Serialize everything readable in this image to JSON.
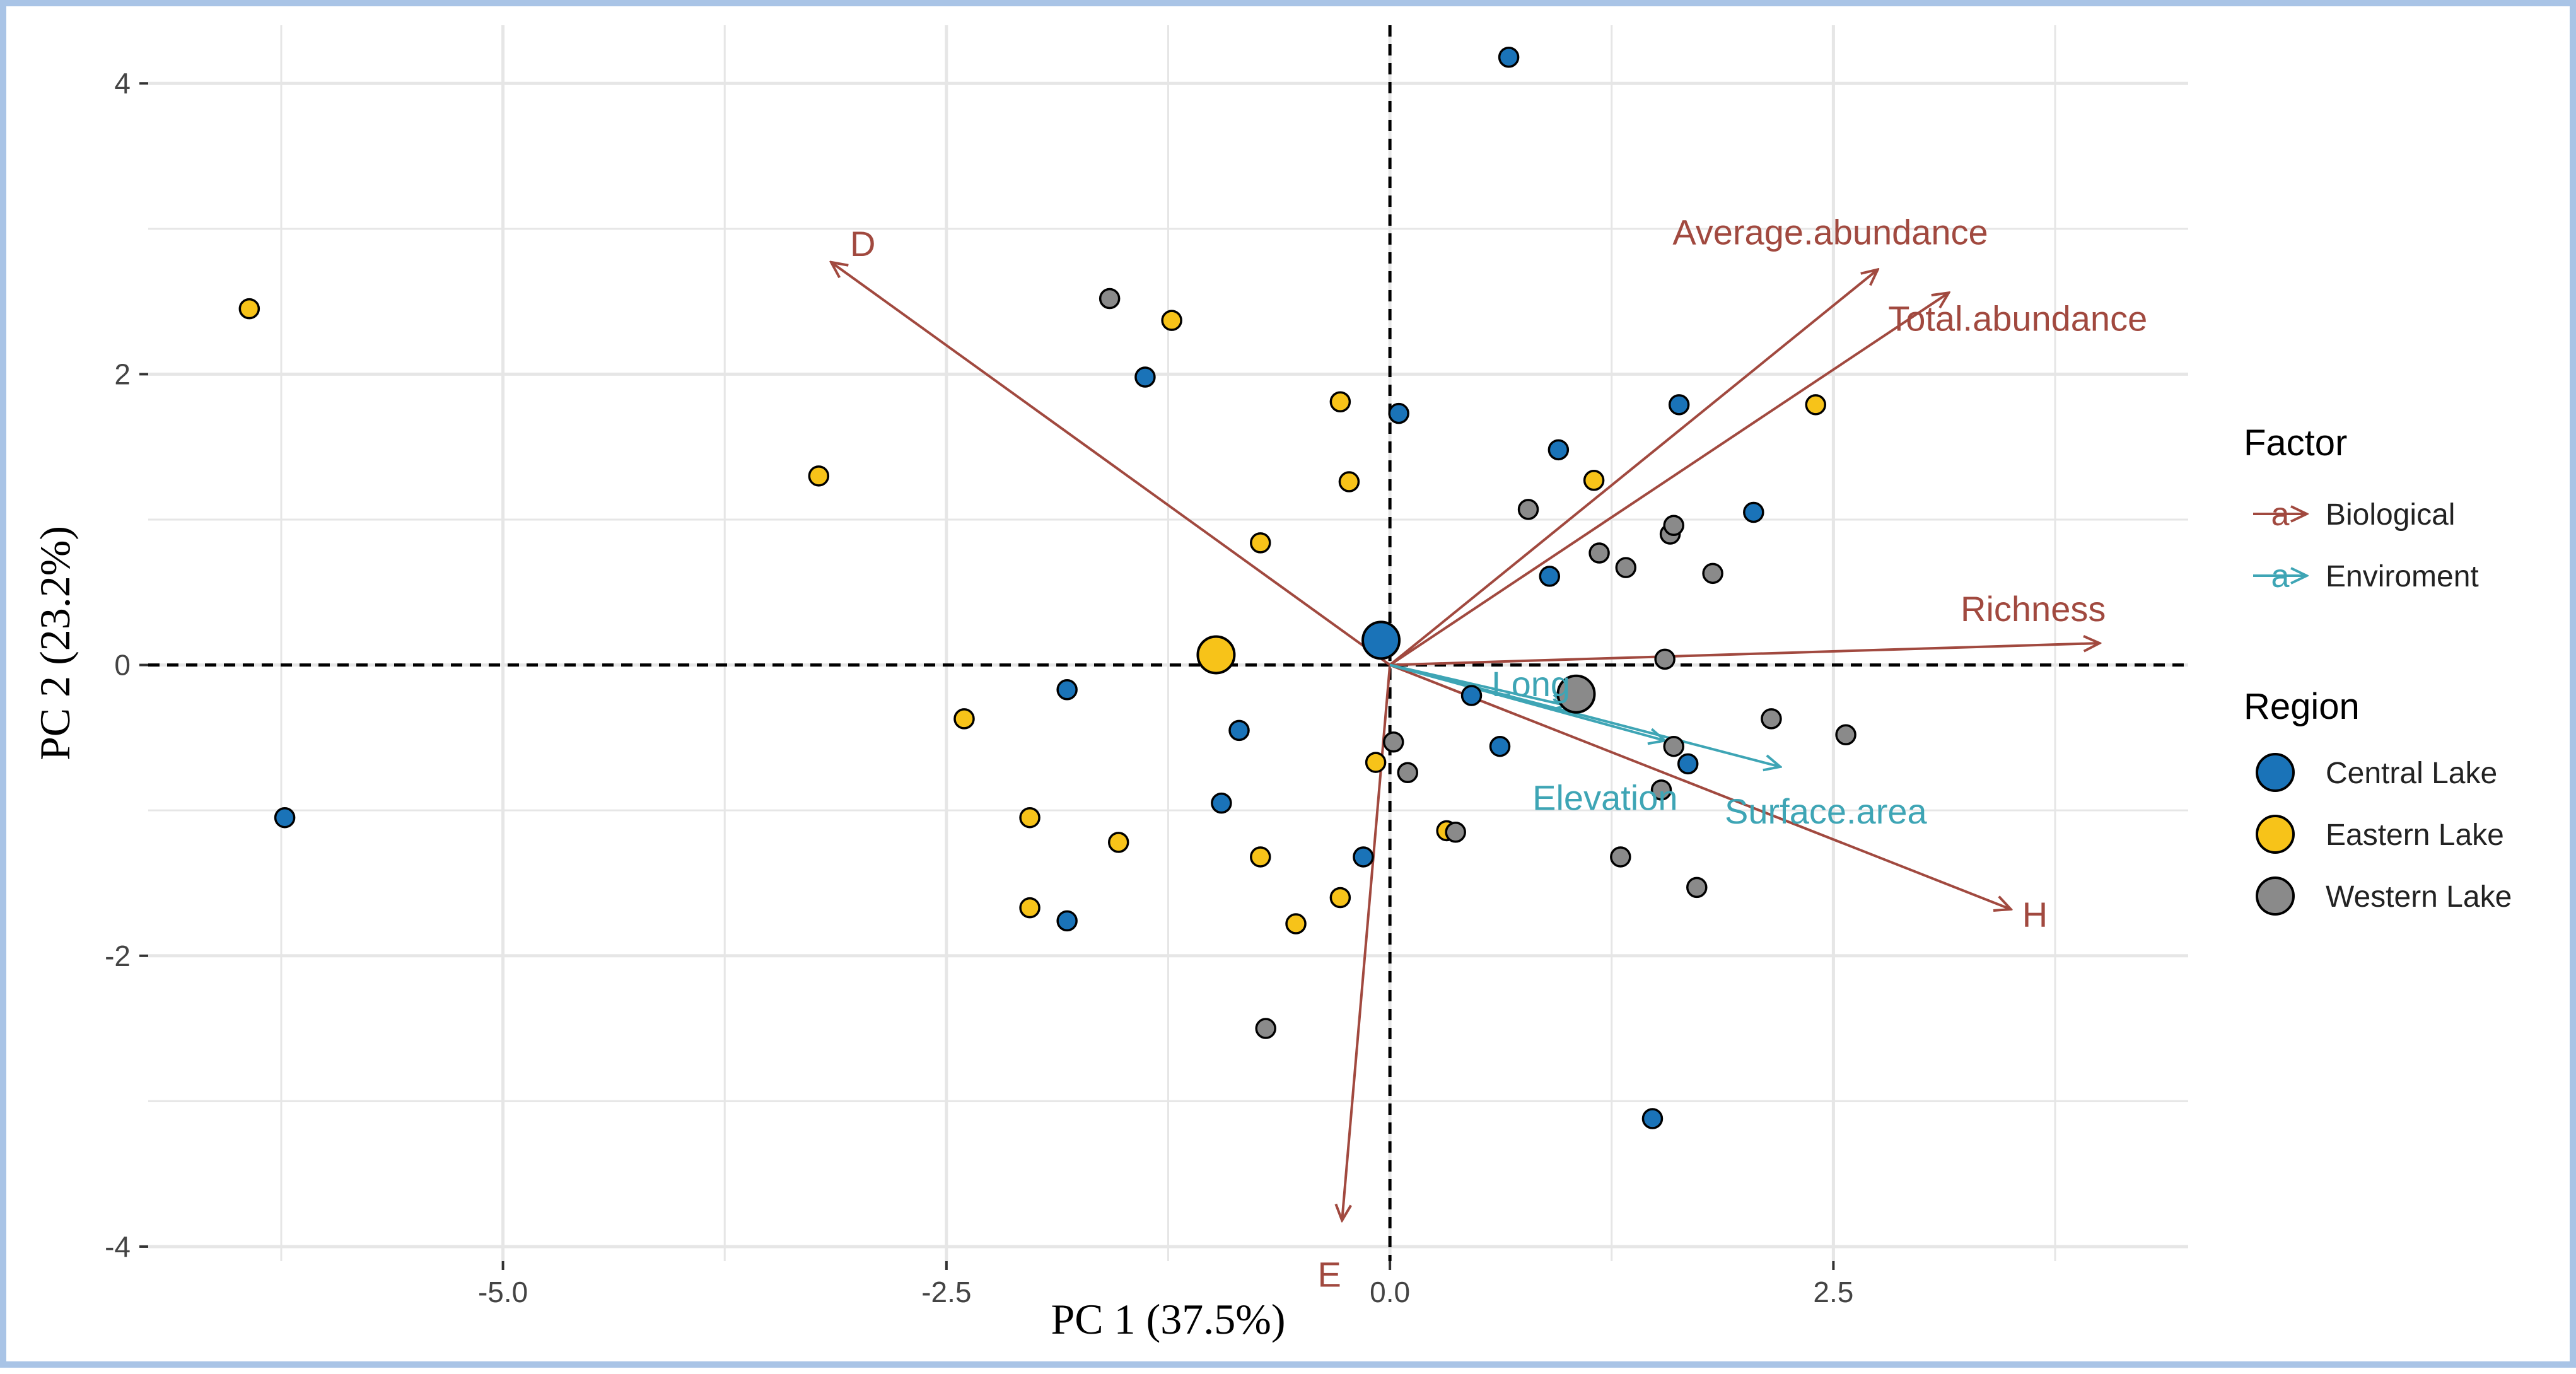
{
  "chart_data": {
    "type": "scatter",
    "subtype": "pca-biplot",
    "title": "",
    "xlabel": "PC 1 (37.5%)",
    "ylabel": "PC 2 (23.2%)",
    "xlim": [
      -7.0,
      4.5
    ],
    "ylim": [
      -4.1,
      4.4
    ],
    "xticks": [
      -5.0,
      -2.5,
      0.0,
      2.5
    ],
    "xtick_labels": [
      "-5.0",
      "-2.5",
      "0.0",
      "2.5"
    ],
    "yticks": [
      -4,
      -2,
      0,
      2,
      4
    ],
    "ytick_labels": [
      "-4",
      "-2",
      "0",
      "2",
      "4"
    ],
    "grid": true,
    "reference_lines": {
      "x": 0,
      "y": 0,
      "style": "dashed"
    },
    "legend_position": "right",
    "colors": {
      "central": "#1a73b8",
      "eastern": "#f7c319",
      "western": "#8a8a8a",
      "biological": "#a1493f",
      "environment": "#3ea5b5",
      "grid": "#e6e6e6"
    },
    "legend_factor": {
      "title": "Factor",
      "items": [
        {
          "label": "Biological",
          "color": "#a1493f"
        },
        {
          "label": "Enviroment",
          "color": "#3ea5b5"
        }
      ]
    },
    "legend_region": {
      "title": "Region",
      "items": [
        {
          "label": "Central Lake",
          "color": "#1a73b8"
        },
        {
          "label": "Eastern Lake",
          "color": "#f7c319"
        },
        {
          "label": "Western Lake",
          "color": "#8a8a8a"
        }
      ]
    },
    "vectors": [
      {
        "label": "D",
        "factor": "Biological",
        "x": -3.15,
        "y": 2.77
      },
      {
        "label": "Average.abundance",
        "factor": "Biological",
        "x": 2.75,
        "y": 2.72
      },
      {
        "label": "Total.abundance",
        "factor": "Biological",
        "x": 3.15,
        "y": 2.56
      },
      {
        "label": "Richness",
        "factor": "Biological",
        "x": 4.0,
        "y": 0.15
      },
      {
        "label": "H",
        "factor": "Biological",
        "x": 3.5,
        "y": -1.68
      },
      {
        "label": "E",
        "factor": "Biological",
        "x": -0.27,
        "y": -3.82
      },
      {
        "label": "Long",
        "factor": "Enviroment",
        "x": 1.0,
        "y": -0.28
      },
      {
        "label": "Elevation",
        "factor": "Enviroment",
        "x": 1.55,
        "y": -0.52
      },
      {
        "label": "Surface.area",
        "factor": "Enviroment",
        "x": 2.2,
        "y": -0.7
      }
    ],
    "centroids": [
      {
        "region": "Central Lake",
        "x": -0.05,
        "y": 0.17
      },
      {
        "region": "Eastern Lake",
        "x": -0.98,
        "y": 0.07
      },
      {
        "region": "Western Lake",
        "x": 1.05,
        "y": -0.2
      }
    ],
    "series": [
      {
        "name": "Central Lake",
        "points": [
          [
            0.67,
            4.18
          ],
          [
            -1.38,
            1.98
          ],
          [
            0.05,
            1.73
          ],
          [
            1.63,
            1.79
          ],
          [
            0.95,
            1.48
          ],
          [
            2.05,
            1.05
          ],
          [
            0.9,
            0.61
          ],
          [
            -1.82,
            -0.17
          ],
          [
            0.46,
            -0.21
          ],
          [
            -0.85,
            -0.45
          ],
          [
            0.62,
            -0.56
          ],
          [
            1.68,
            -0.68
          ],
          [
            -0.95,
            -0.95
          ],
          [
            -0.15,
            -1.32
          ],
          [
            -1.82,
            -1.76
          ],
          [
            1.48,
            -3.12
          ],
          [
            -6.23,
            -1.05
          ]
        ]
      },
      {
        "name": "Eastern Lake",
        "points": [
          [
            -6.43,
            2.45
          ],
          [
            -3.22,
            1.3
          ],
          [
            -1.23,
            2.37
          ],
          [
            -0.28,
            1.81
          ],
          [
            -0.23,
            1.26
          ],
          [
            1.15,
            1.27
          ],
          [
            -0.73,
            0.84
          ],
          [
            2.4,
            1.79
          ],
          [
            -2.4,
            -0.37
          ],
          [
            -2.03,
            -1.05
          ],
          [
            -1.53,
            -1.22
          ],
          [
            -2.03,
            -1.67
          ],
          [
            -0.73,
            -1.32
          ],
          [
            -0.53,
            -1.78
          ],
          [
            -0.28,
            -1.6
          ],
          [
            -0.08,
            -0.67
          ],
          [
            0.32,
            -1.14
          ]
        ]
      },
      {
        "name": "Western Lake",
        "points": [
          [
            -1.58,
            2.52
          ],
          [
            0.78,
            1.07
          ],
          [
            1.18,
            0.77
          ],
          [
            1.33,
            0.67
          ],
          [
            1.58,
            0.9
          ],
          [
            1.6,
            0.96
          ],
          [
            1.82,
            0.63
          ],
          [
            1.55,
            0.04
          ],
          [
            0.02,
            -0.53
          ],
          [
            0.1,
            -0.74
          ],
          [
            1.6,
            -0.56
          ],
          [
            2.15,
            -0.37
          ],
          [
            2.57,
            -0.48
          ],
          [
            1.53,
            -0.86
          ],
          [
            0.37,
            -1.15
          ],
          [
            1.3,
            -1.32
          ],
          [
            1.73,
            -1.53
          ],
          [
            -0.7,
            -2.5
          ]
        ]
      }
    ]
  }
}
